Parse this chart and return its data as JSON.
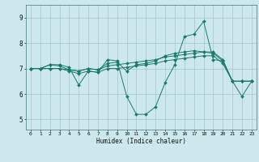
{
  "title": "",
  "xlabel": "Humidex (Indice chaleur)",
  "background_color": "#cce8ec",
  "grid_color": "#aacccc",
  "line_color": "#1a7a6e",
  "xlim": [
    -0.5,
    23.5
  ],
  "ylim": [
    4.6,
    9.5
  ],
  "yticks": [
    5,
    6,
    7,
    8,
    9
  ],
  "xticks": [
    0,
    1,
    2,
    3,
    4,
    5,
    6,
    7,
    8,
    9,
    10,
    11,
    12,
    13,
    14,
    15,
    16,
    17,
    18,
    19,
    20,
    21,
    22,
    23
  ],
  "lines": [
    [
      7.0,
      7.0,
      7.15,
      7.15,
      7.05,
      6.35,
      6.9,
      6.85,
      7.35,
      7.3,
      5.9,
      5.2,
      5.2,
      5.5,
      6.45,
      7.15,
      8.25,
      8.35,
      8.85,
      7.35,
      7.3,
      6.5,
      5.9,
      6.5
    ],
    [
      7.0,
      7.0,
      7.15,
      7.1,
      6.95,
      6.9,
      7.0,
      6.95,
      7.2,
      7.25,
      6.9,
      7.15,
      7.2,
      7.3,
      7.5,
      7.6,
      7.65,
      7.7,
      7.65,
      7.6,
      7.3,
      6.5,
      6.5,
      6.5
    ],
    [
      7.0,
      7.0,
      7.0,
      7.0,
      6.95,
      6.9,
      7.0,
      6.95,
      7.1,
      7.15,
      7.2,
      7.25,
      7.3,
      7.35,
      7.45,
      7.5,
      7.55,
      7.6,
      7.65,
      7.65,
      7.35,
      6.5,
      6.5,
      6.5
    ],
    [
      7.0,
      7.0,
      7.0,
      7.0,
      6.9,
      6.8,
      6.9,
      6.85,
      7.0,
      7.0,
      7.05,
      7.1,
      7.15,
      7.2,
      7.3,
      7.35,
      7.4,
      7.45,
      7.5,
      7.5,
      7.2,
      6.5,
      6.5,
      6.5
    ]
  ]
}
